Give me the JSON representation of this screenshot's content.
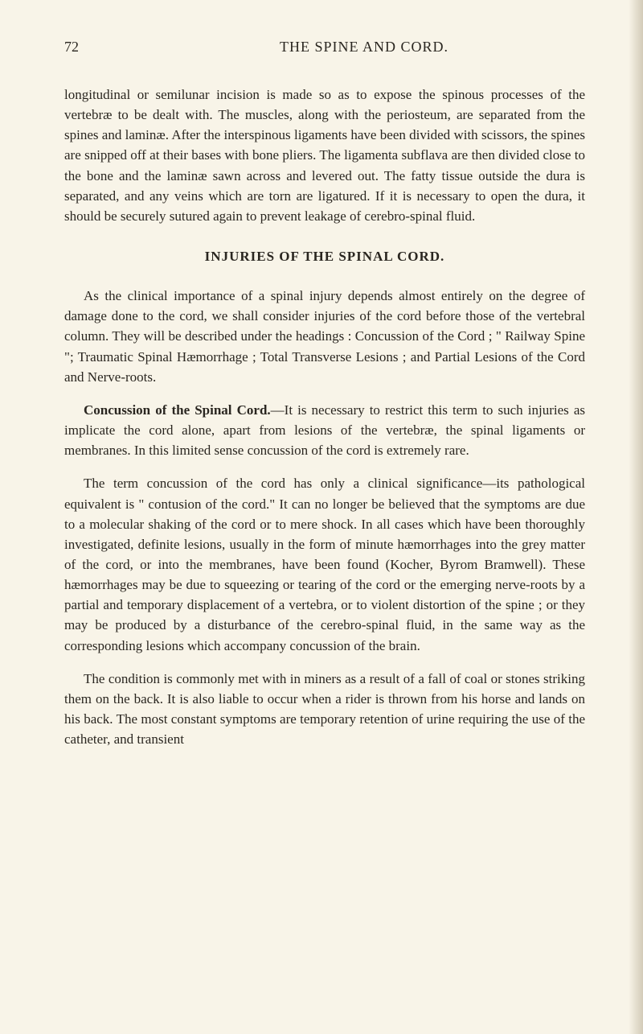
{
  "page": {
    "number": "72",
    "running_title": "THE SPINE AND CORD."
  },
  "paragraphs": {
    "p1": "longitudinal or semilunar incision is made so as to expose the spinous processes of the vertebræ to be dealt with. The muscles, along with the periosteum, are separated from the spines and laminæ. After the interspinous ligaments have been divided with scissors, the spines are snipped off at their bases with bone pliers. The ligamenta subflava are then divided close to the bone and the laminæ sawn across and levered out. The fatty tissue outside the dura is separated, and any veins which are torn are ligatured. If it is necessary to open the dura, it should be securely sutured again to prevent leakage of cerebro-spinal fluid.",
    "section_title": "INJURIES OF THE SPINAL CORD.",
    "p2": "As the clinical importance of a spinal injury depends almost entirely on the degree of damage done to the cord, we shall consider injuries of the cord before those of the vertebral column. They will be described under the headings : Concussion of the Cord ; \" Railway Spine \"; Traumatic Spinal Hæmorrhage ; Total Transverse Lesions ; and Partial Lesions of the Cord and Nerve-roots.",
    "p3_bold": "Concussion of the Spinal Cord.",
    "p3_rest": "—It is necessary to restrict this term to such injuries as implicate the cord alone, apart from lesions of the vertebræ, the spinal ligaments or membranes. In this limited sense concussion of the cord is extremely rare.",
    "p4": "The term concussion of the cord has only a clinical significance—its pathological equivalent is \" contusion of the cord.\" It can no longer be believed that the symptoms are due to a molecular shaking of the cord or to mere shock. In all cases which have been thoroughly investigated, definite lesions, usually in the form of minute hæmorrhages into the grey matter of the cord, or into the membranes, have been found (Kocher, Byrom Bramwell). These hæmorrhages may be due to squeezing or tearing of the cord or the emerging nerve-roots by a partial and temporary displacement of a vertebra, or to violent distortion of the spine ; or they may be produced by a disturbance of the cerebro-spinal fluid, in the same way as the corresponding lesions which accompany concussion of the brain.",
    "p5": "The condition is commonly met with in miners as a result of a fall of coal or stones striking them on the back. It is also liable to occur when a rider is thrown from his horse and lands on his back. The most constant symptoms are temporary retention of urine requiring the use of the catheter, and transient"
  },
  "style": {
    "background_color": "#f8f4e8",
    "text_color": "#2a2620",
    "body_font_size": 17,
    "header_font_size": 18,
    "line_height": 1.48
  }
}
